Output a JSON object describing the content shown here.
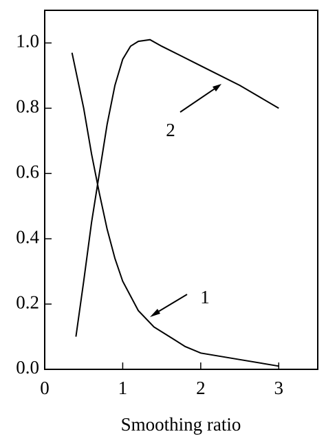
{
  "chart_data": {
    "type": "line",
    "x_label": "Smoothing ratio",
    "series": [
      {
        "name": "1",
        "color": "#000000",
        "x": [
          0.35,
          0.5,
          0.6,
          0.7,
          0.8,
          0.9,
          1.0,
          1.2,
          1.4,
          1.6,
          1.8,
          2.0,
          2.5,
          3.0
        ],
        "values": [
          0.97,
          0.8,
          0.66,
          0.54,
          0.43,
          0.34,
          0.27,
          0.18,
          0.13,
          0.1,
          0.07,
          0.05,
          0.03,
          0.01
        ]
      },
      {
        "name": "2",
        "color": "#000000",
        "x": [
          0.4,
          0.5,
          0.6,
          0.7,
          0.8,
          0.9,
          1.0,
          1.1,
          1.2,
          1.35,
          1.5,
          1.75,
          2.0,
          2.5,
          3.0
        ],
        "values": [
          0.1,
          0.27,
          0.45,
          0.6,
          0.75,
          0.87,
          0.95,
          0.99,
          1.005,
          1.01,
          0.99,
          0.96,
          0.93,
          0.87,
          0.8
        ]
      }
    ],
    "xlim": [
      0,
      3.5
    ],
    "xticks": [
      0,
      1,
      2,
      3
    ],
    "ylim": [
      0,
      1.1
    ],
    "yticks": [
      {
        "value": 0,
        "label": "0.0"
      },
      0.2,
      0.4,
      0.6,
      0.8,
      {
        "value": 1,
        "label": "1.0"
      }
    ],
    "grid": false
  }
}
